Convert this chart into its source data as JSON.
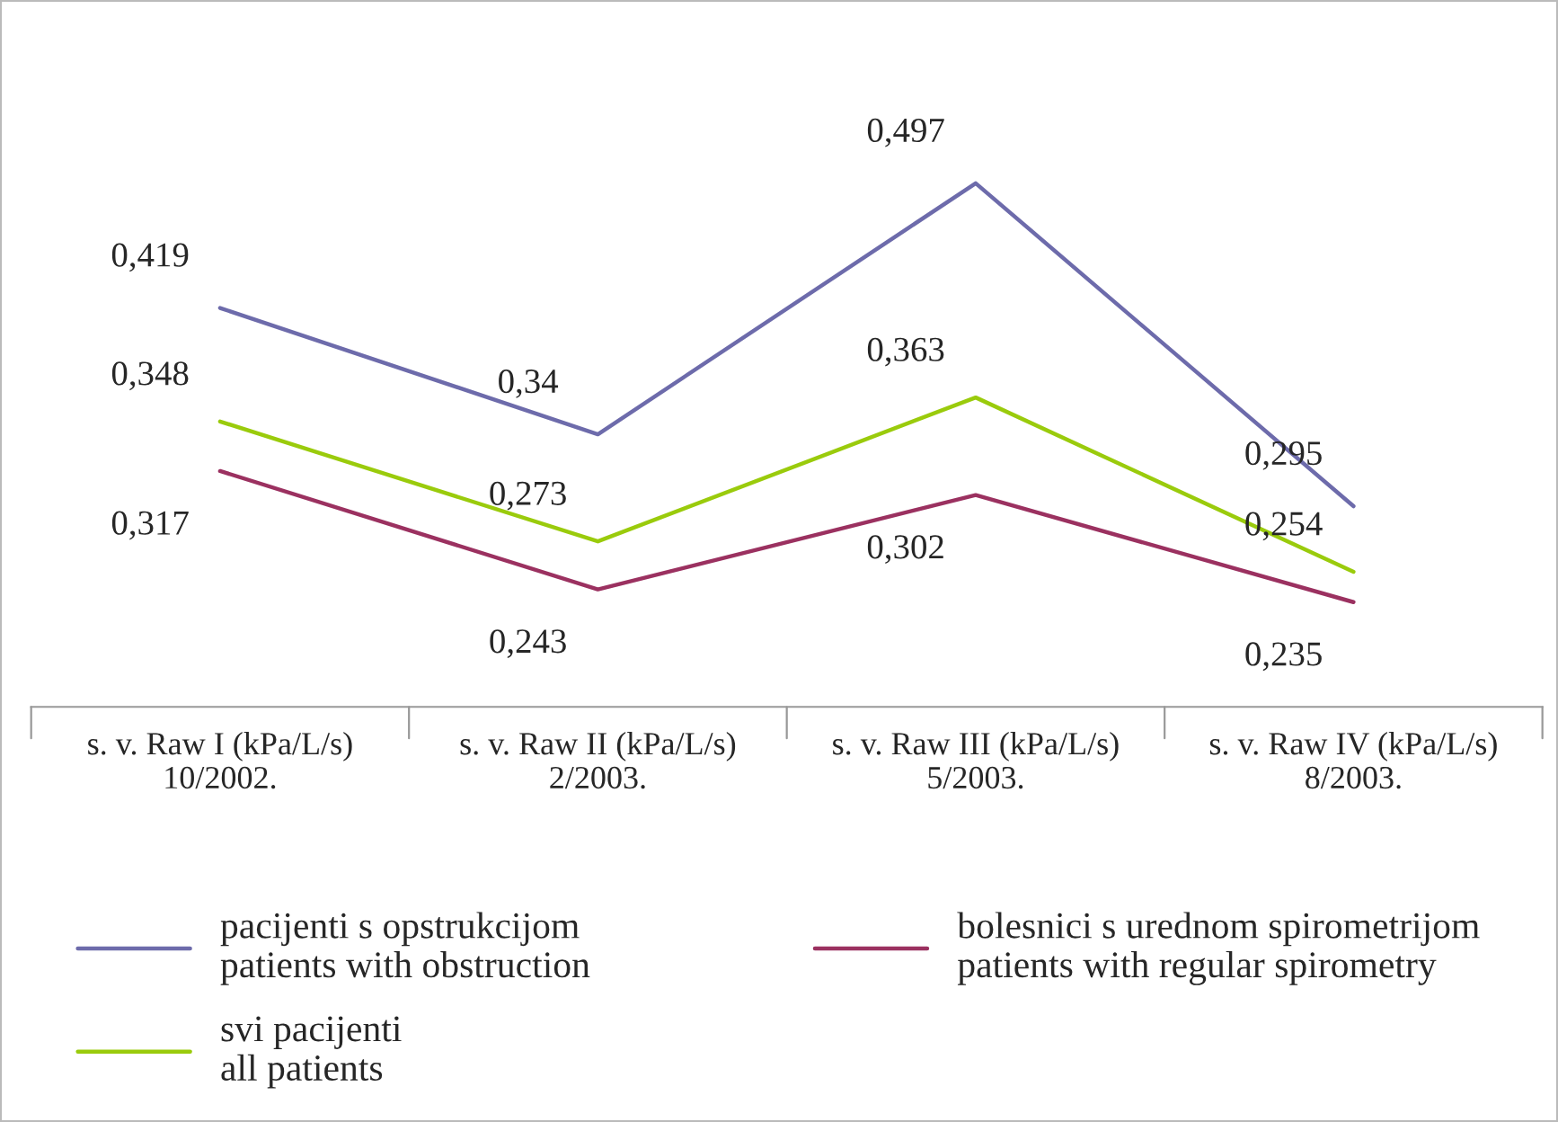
{
  "chart_data": {
    "type": "line",
    "categories": [
      "s. v. Raw I (kPa/L/s)\n10/2002.",
      "s. v. Raw II (kPa/L/s)\n2/2003.",
      "s. v. Raw III (kPa/L/s)\n5/2003.",
      "s. v. Raw IV (kPa/L/s)\n8/2003."
    ],
    "series": [
      {
        "name": "pacijenti s opstrukcijom\npatients with obstruction",
        "color": "#6d6bab",
        "values": [
          0.419,
          0.34,
          0.497,
          0.295
        ],
        "value_labels": [
          "0,419",
          "0,34",
          "0,497",
          "0,295"
        ]
      },
      {
        "name": "bolesnici s urednom spirometrijom\npatients with regular spirometry",
        "color": "#9b3160",
        "values": [
          0.317,
          0.243,
          0.302,
          0.235
        ],
        "value_labels": [
          "0,317",
          "0,243",
          "0,302",
          "0,235"
        ]
      },
      {
        "name": "svi pacijenti\nall patients",
        "color": "#9acb0c",
        "values": [
          0.348,
          0.273,
          0.363,
          0.254
        ],
        "value_labels": [
          "0,348",
          "0,273",
          "0,363",
          "0,254"
        ]
      }
    ],
    "tick_labels": "x",
    "legend": "bottom",
    "grid": false,
    "marker": "none",
    "line_style": "solid"
  }
}
